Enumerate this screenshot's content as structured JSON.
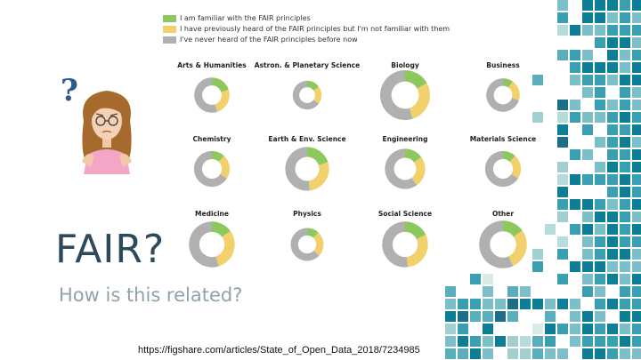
{
  "legend": [
    {
      "label": "I am familiar with the FAIR principles",
      "color": "#8dc85c"
    },
    {
      "label": "I have previously heard of the FAIR principles but I'm not familiar with them",
      "color": "#f2d06b"
    },
    {
      "label": "I've never heard of the FAIR principles before now",
      "color": "#b0b0b0"
    }
  ],
  "chart_data": {
    "type": "pie",
    "variant": "donut",
    "series_names": [
      "I am familiar with the FAIR principles",
      "I have previously heard of the FAIR principles but I'm not familiar with them",
      "I've never heard of the FAIR principles before now"
    ],
    "colors": [
      "#8dc85c",
      "#f2d06b",
      "#b0b0b0"
    ],
    "note_size": "ring size reflects number of respondents",
    "panels": [
      {
        "title": "Arts & Humanities",
        "values": [
          20,
          25,
          55
        ],
        "respondents": 22
      },
      {
        "title": "Astron. & Planetary Science",
        "values": [
          15,
          20,
          65
        ],
        "respondents": 12
      },
      {
        "title": "Biology",
        "values": [
          17,
          28,
          55
        ],
        "respondents": 56
      },
      {
        "title": "Business",
        "values": [
          10,
          20,
          70
        ],
        "respondents": 19
      },
      {
        "title": "Chemistry",
        "values": [
          12,
          22,
          66
        ],
        "respondents": 23
      },
      {
        "title": "Earth & Env. Science",
        "values": [
          20,
          28,
          52
        ],
        "respondents": 40
      },
      {
        "title": "Engineering",
        "values": [
          15,
          25,
          60
        ],
        "respondents": 32
      },
      {
        "title": "Materials Science",
        "values": [
          12,
          22,
          66
        ],
        "respondents": 23
      },
      {
        "title": "Medicine",
        "values": [
          15,
          30,
          55
        ],
        "respondents": 45
      },
      {
        "title": "Physics",
        "values": [
          12,
          25,
          63
        ],
        "respondents": 18
      },
      {
        "title": "Social Science",
        "values": [
          18,
          30,
          52
        ],
        "respondents": 45
      },
      {
        "title": "Other",
        "values": [
          15,
          28,
          57
        ],
        "respondents": 50
      }
    ]
  },
  "slide": {
    "title": "FAIR?",
    "subtitle": "How is this related?",
    "source": "https://figshare.com/articles/State_of_Open_Data_2018/7234985",
    "question_mark": "?"
  },
  "mosaic_colors": [
    "#0e7e96",
    "#3a9fb0",
    "#7dbfc8",
    "#b6dcdc",
    "#d9ece6",
    "#1c6f86",
    "#5aaebb",
    "#a2cfcf"
  ]
}
